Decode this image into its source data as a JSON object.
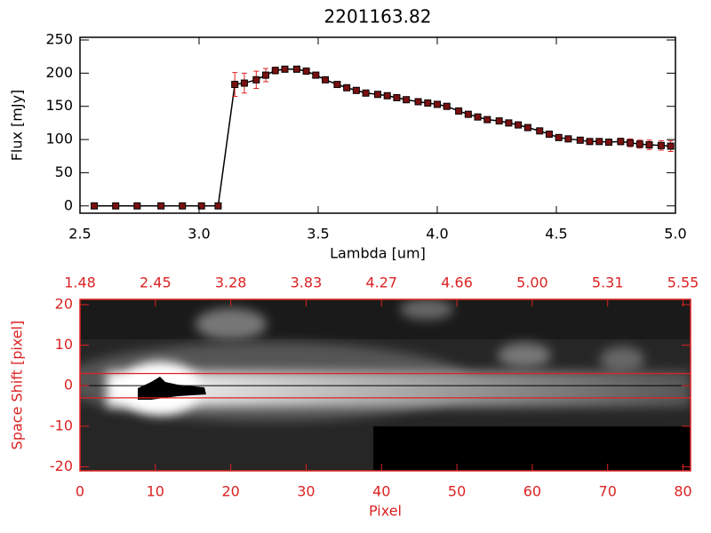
{
  "chart_data": [
    {
      "type": "line",
      "title": "2201163.82",
      "xlabel": "Lambda [um]",
      "ylabel": "Flux [mJy]",
      "x": [
        2.56,
        2.65,
        2.74,
        2.84,
        2.93,
        3.01,
        3.08,
        3.15,
        3.19,
        3.24,
        3.28,
        3.32,
        3.36,
        3.41,
        3.45,
        3.49,
        3.53,
        3.58,
        3.62,
        3.66,
        3.7,
        3.75,
        3.79,
        3.83,
        3.87,
        3.92,
        3.96,
        4.0,
        4.04,
        4.09,
        4.13,
        4.17,
        4.21,
        4.26,
        4.3,
        4.34,
        4.38,
        4.43,
        4.47,
        4.51,
        4.55,
        4.6,
        4.64,
        4.68,
        4.72,
        4.77,
        4.81,
        4.85,
        4.89,
        4.94,
        4.98
      ],
      "series": [
        {
          "color": "#000000",
          "marker_color": "#7a1010",
          "error_color": "#dd2222",
          "values": [
            0,
            0,
            0,
            0,
            0,
            0,
            0,
            183,
            185,
            190,
            197,
            204,
            206,
            206,
            203,
            197,
            190,
            183,
            178,
            174,
            170,
            168,
            166,
            163,
            160,
            157,
            155,
            153,
            150,
            143,
            138,
            134,
            130,
            128,
            125,
            122,
            118,
            113,
            108,
            103,
            101,
            99,
            97,
            97,
            96,
            97,
            95,
            93,
            92,
            91,
            90
          ],
          "errors": [
            0,
            0,
            0,
            0,
            0,
            0,
            0,
            18,
            15,
            13,
            10,
            5,
            3,
            3,
            3,
            3,
            3,
            3,
            3,
            3,
            3,
            3,
            3,
            3,
            3,
            3,
            3,
            3,
            3,
            3,
            3,
            3,
            3,
            3,
            3,
            3,
            3,
            3,
            3,
            3,
            3,
            3,
            3,
            3,
            4,
            5,
            6,
            6,
            7,
            7,
            8
          ]
        }
      ],
      "xlim": [
        2.5,
        5.0
      ],
      "xticks": [
        {
          "value": 2.5,
          "label": "2.5"
        },
        {
          "value": 3.0,
          "label": "3.0"
        },
        {
          "value": 3.5,
          "label": "3.5"
        },
        {
          "value": 4.0,
          "label": "4.0"
        },
        {
          "value": 4.5,
          "label": "4.5"
        },
        {
          "value": 5.0,
          "label": "5.0"
        }
      ],
      "ylim": [
        -11,
        254
      ],
      "yticks": [
        0,
        50,
        100,
        150,
        200,
        250
      ]
    },
    {
      "type": "image",
      "xlabel": "Pixel",
      "ylabel": "Space Shift [pixel]",
      "color": "#dd2222",
      "xlim": [
        0,
        81
      ],
      "xticks": [
        0,
        10,
        20,
        30,
        40,
        50,
        60,
        70,
        80
      ],
      "x2ticks": [
        {
          "value": 0,
          "label": "1.48"
        },
        {
          "value": 10,
          "label": "2.45"
        },
        {
          "value": 20,
          "label": "3.28"
        },
        {
          "value": 30,
          "label": "3.83"
        },
        {
          "value": 40,
          "label": "4.27"
        },
        {
          "value": 50,
          "label": "4.66"
        },
        {
          "value": 60,
          "label": "5.00"
        },
        {
          "value": 70,
          "label": "5.31"
        },
        {
          "value": 80,
          "label": "5.55"
        }
      ],
      "ylim": [
        -21,
        21.3
      ],
      "yticks": [
        -20,
        -10,
        0,
        10,
        20
      ],
      "hlines": [
        3,
        -3
      ],
      "center_line": 0
    }
  ]
}
